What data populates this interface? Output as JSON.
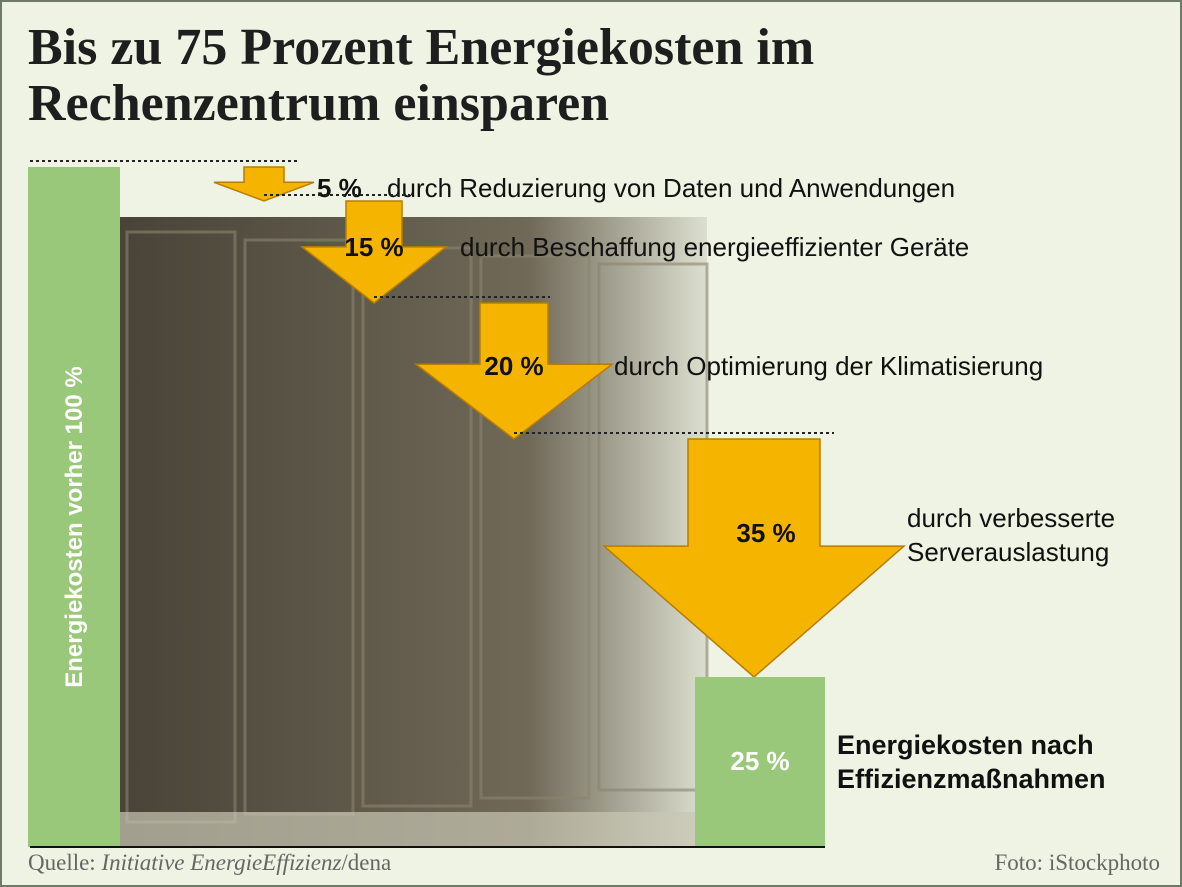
{
  "title_lines": [
    "Bis zu 75 Prozent Energiekosten im",
    "Rechenzentrum einsparen"
  ],
  "source": {
    "prefix": "Quelle: ",
    "name": "Initiative EnergieEffizienz",
    "suffix": "/dena"
  },
  "credit": "Foto: iStockphoto",
  "colors": {
    "bar": "#9ac87a",
    "arrow": "#f5b400",
    "arrow_edge": "#b87c00",
    "background": "#eef3e3",
    "text": "#111111",
    "bar_text": "#ffffff"
  },
  "chart_data": {
    "type": "bar",
    "title": "Bis zu 75 Prozent Energiekosten im Rechenzentrum einsparen",
    "unit": "%",
    "start": {
      "label": "Energiekosten vorher 100 %",
      "value": 100
    },
    "steps": [
      {
        "value": 5,
        "label": "5 %",
        "description": [
          "durch Reduzierung von Daten und Anwendungen"
        ]
      },
      {
        "value": 15,
        "label": "15 %",
        "description": [
          "durch Beschaffung energieeffizienter Geräte"
        ]
      },
      {
        "value": 20,
        "label": "20 %",
        "description": [
          "durch Optimierung der Klimatisierung"
        ]
      },
      {
        "value": 35,
        "label": "35 %",
        "description": [
          "durch verbesserte",
          "Serverauslastung"
        ]
      }
    ],
    "end": {
      "value": 25,
      "label": "25 %",
      "description": [
        "Energiekosten nach",
        "Effizienzmaßnahmen"
      ]
    }
  }
}
